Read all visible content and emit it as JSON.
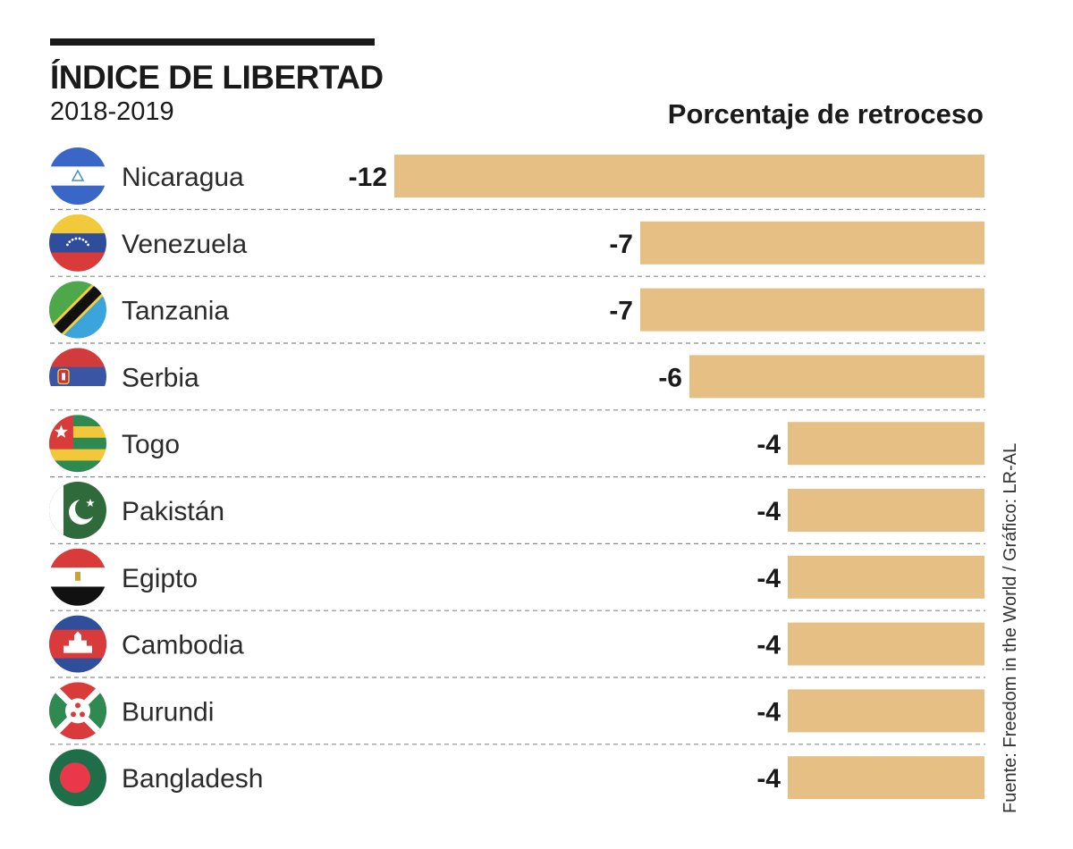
{
  "header": {
    "title": "ÍNDICE DE LIBERTAD",
    "subtitle": "2018-2019",
    "measure_label": "Porcentaje de retroceso"
  },
  "source": "Fuente: Freedom in the World / Gráfico: LR-AL",
  "colors": {
    "bar": "#E6BF85",
    "divider": "#8a8a8a",
    "text": "#1a1a1a"
  },
  "chart_data": {
    "type": "bar",
    "orientation": "horizontal",
    "title": "ÍNDICE DE LIBERTAD",
    "subtitle": "2018-2019",
    "value_label": "Porcentaje de retroceso",
    "categories": [
      "Nicaragua",
      "Venezuela",
      "Tanzania",
      "Serbia",
      "Togo",
      "Pakistán",
      "Egipto",
      "Cambodia",
      "Burundi",
      "Bangladesh"
    ],
    "values": [
      -12,
      -7,
      -7,
      -6,
      -4,
      -4,
      -4,
      -4,
      -4,
      -4
    ],
    "value_labels": [
      "-12",
      "-7",
      "-7",
      "-6",
      "-4",
      "-4",
      "-4",
      "-4",
      "-4",
      "-4"
    ],
    "flag_icons": [
      "nicaragua-flag-icon",
      "venezuela-flag-icon",
      "tanzania-flag-icon",
      "serbia-flag-icon",
      "togo-flag-icon",
      "pakistan-flag-icon",
      "egypt-flag-icon",
      "cambodia-flag-icon",
      "burundi-flag-icon",
      "bangladesh-flag-icon"
    ],
    "xlim": [
      -12,
      0
    ],
    "grid": false,
    "legend": "none"
  }
}
